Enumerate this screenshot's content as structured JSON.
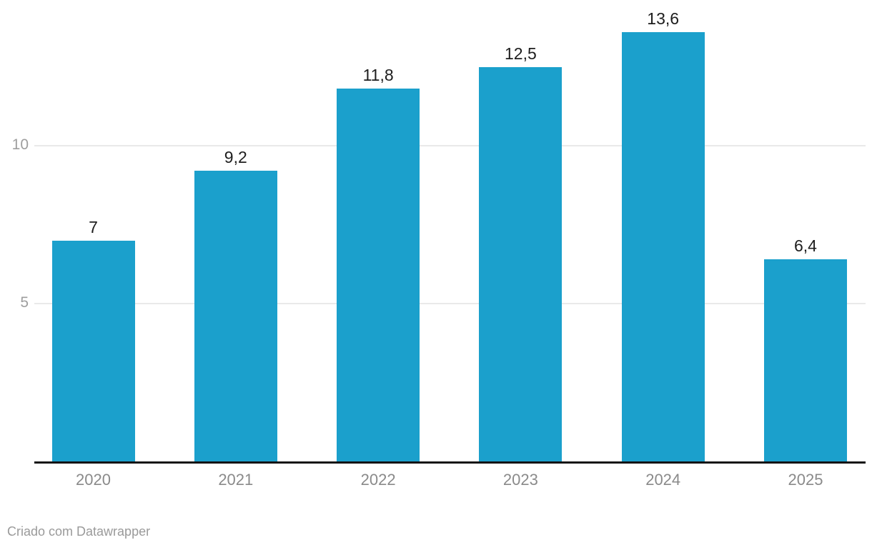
{
  "chart_data": {
    "type": "bar",
    "categories": [
      "2020",
      "2021",
      "2022",
      "2023",
      "2024",
      "2025"
    ],
    "values": [
      7,
      9.2,
      11.8,
      12.5,
      13.6,
      6.4
    ],
    "value_labels": [
      "7",
      "9,2",
      "11,8",
      "12,5",
      "13,6",
      "6,4"
    ],
    "yticks": [
      {
        "value": 5,
        "label": "5"
      },
      {
        "value": 10,
        "label": "10"
      }
    ],
    "ylim": [
      0,
      14.6
    ],
    "grid": true,
    "legend": "none",
    "title": "",
    "xlabel": "",
    "ylabel": "",
    "bar_color": "#1ba0cc",
    "gridline_color": "#e9e9e9",
    "axis_line_color": "#141414",
    "value_label_color": "#1d1d1d",
    "x_tick_color": "#8a8a8a",
    "y_tick_color": "#9e9e9e"
  },
  "footer": {
    "attribution": "Criado com Datawrapper"
  }
}
